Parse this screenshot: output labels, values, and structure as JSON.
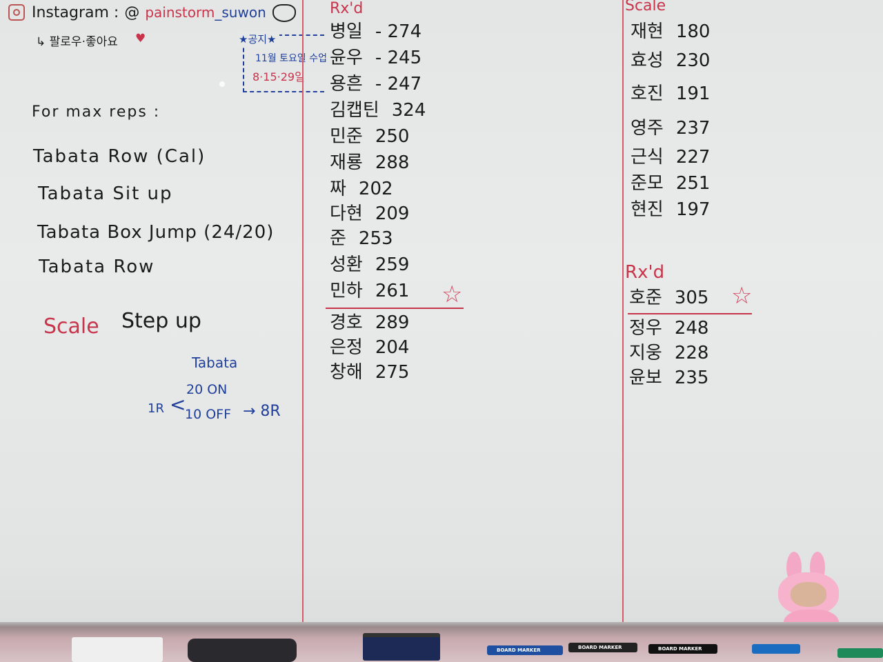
{
  "header": {
    "instagram_label": "Instagram :",
    "at_sign": "@",
    "handle_part1": "painstorm",
    "handle_part2": "_suwon",
    "follow_note": "↳ 팔로우·좋아요",
    "heart_icon": "heart-icon",
    "instagram_icon": "instagram-icon"
  },
  "notice": {
    "title": "★공지★",
    "line1": "11월 토요일 수업",
    "line2": "8·15·29일"
  },
  "workout": {
    "heading": "For max reps :",
    "items": [
      "Tabata  Row (Cal)",
      "Tabata  Sit up",
      "Tabata  Box Jump (24/20)",
      "Tabata  Row"
    ],
    "scale_label": "Scale",
    "scale_value": "Step up",
    "tabata_title": "Tabata",
    "round_label": "1R",
    "on": "20 ON",
    "off": "10 OFF",
    "result": "→ 8R"
  },
  "rxd_column": {
    "title": "Rx'd",
    "entries": [
      {
        "name": "병일",
        "score": "- 274"
      },
      {
        "name": "윤우",
        "score": "- 245"
      },
      {
        "name": "용흔",
        "score": "- 247"
      },
      {
        "name": "김캡틴",
        "score": "324"
      },
      {
        "name": "민준",
        "score": "250"
      },
      {
        "name": "재룡",
        "score": "288"
      },
      {
        "name": "짜",
        "score": "202"
      },
      {
        "name": "다현",
        "score": "209"
      },
      {
        "name": "준",
        "score": "253"
      },
      {
        "name": "성환",
        "score": "259"
      },
      {
        "name": "민하",
        "score": "261"
      },
      {
        "name": "경호",
        "score": "289"
      },
      {
        "name": "은정",
        "score": "204"
      },
      {
        "name": "창해",
        "score": "275"
      }
    ],
    "star_icon": "star-icon"
  },
  "scale_column": {
    "title": "Scale",
    "entries": [
      {
        "name": "재현",
        "score": "180"
      },
      {
        "name": "효성",
        "score": "230"
      },
      {
        "name": "호진",
        "score": "191"
      },
      {
        "name": "영주",
        "score": "237"
      },
      {
        "name": "근식",
        "score": "227"
      },
      {
        "name": "준모",
        "score": "251"
      },
      {
        "name": "현진",
        "score": "197"
      }
    ],
    "rxd_title": "Rx'd",
    "rxd_entries": [
      {
        "name": "호준",
        "score": "305"
      },
      {
        "name": "정우",
        "score": "248"
      },
      {
        "name": "지웅",
        "score": "228"
      },
      {
        "name": "윤보",
        "score": "235"
      }
    ]
  },
  "tray": {
    "marker_label": "BOARD MARKER"
  }
}
